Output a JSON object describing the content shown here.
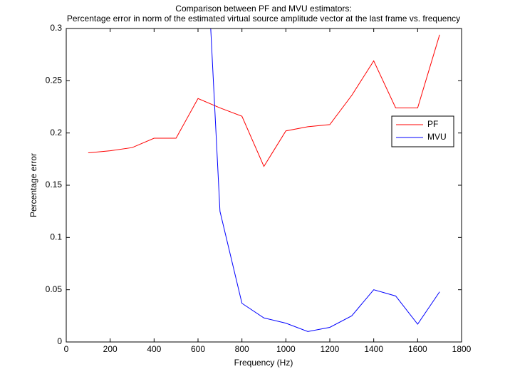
{
  "chart_data": {
    "type": "line",
    "title": "Comparison between PF and MVU estimators:",
    "subtitle": "Percentage error in norm of the estimated virtual source amplitude vector at the last frame vs. frequency",
    "x_label": "Frequency (Hz)",
    "y_label": "Percentage error",
    "x": [
      100,
      200,
      300,
      400,
      500,
      600,
      700,
      800,
      900,
      1000,
      1100,
      1200,
      1300,
      1400,
      1500,
      1600,
      1700
    ],
    "series": [
      {
        "name": "PF",
        "color": "#ff0000",
        "values": [
          0.181,
          0.183,
          0.186,
          0.195,
          0.195,
          0.233,
          0.224,
          0.216,
          0.168,
          0.202,
          0.206,
          0.208,
          0.236,
          0.269,
          0.224,
          0.224,
          0.294
        ]
      },
      {
        "name": "MVU",
        "color": "#0000ff",
        "values": [
          null,
          null,
          null,
          null,
          null,
          0.54,
          0.125,
          0.037,
          0.023,
          0.018,
          0.01,
          0.014,
          0.025,
          0.05,
          0.044,
          0.017,
          0.048
        ]
      }
    ],
    "xlim": [
      0,
      1800
    ],
    "xticks": [
      0,
      200,
      400,
      600,
      800,
      1000,
      1200,
      1400,
      1600,
      1800
    ],
    "ylim": [
      0,
      0.3
    ],
    "yticks": [
      0,
      0.05,
      0.1,
      0.15,
      0.2,
      0.25,
      0.3
    ],
    "legend": "northeast"
  }
}
